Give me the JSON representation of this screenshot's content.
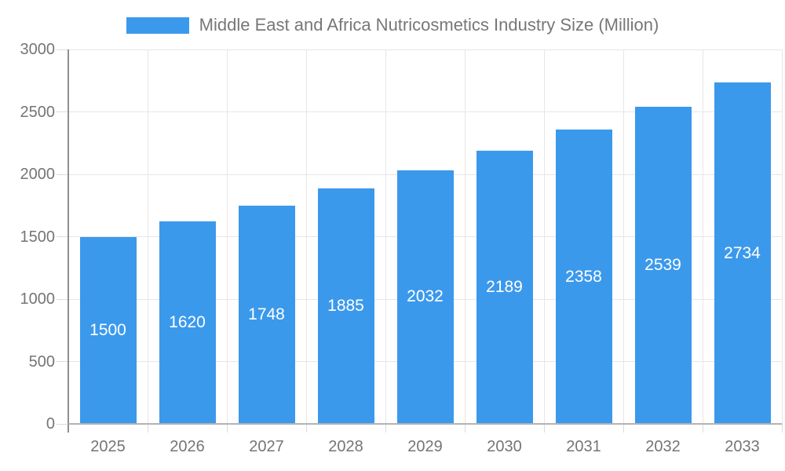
{
  "chart_data": {
    "type": "bar",
    "title": "Middle East and Africa Nutricosmetics Industry Size (Million)",
    "categories": [
      "2025",
      "2026",
      "2027",
      "2028",
      "2029",
      "2030",
      "2031",
      "2032",
      "2033"
    ],
    "values": [
      1500,
      1620,
      1748,
      1885,
      2032,
      2189,
      2358,
      2539,
      2734
    ],
    "series": [
      {
        "name": "Middle East and Africa Nutricosmetics Industry Size (Million)",
        "values": [
          1500,
          1620,
          1748,
          1885,
          2032,
          2189,
          2358,
          2539,
          2734
        ]
      }
    ],
    "xlabel": "",
    "ylabel": "",
    "ylim": [
      0,
      3000
    ],
    "ytick_step": 500,
    "ytick_labels": [
      "0",
      "500",
      "1000",
      "1500",
      "2000",
      "2500",
      "3000"
    ],
    "grid": true,
    "legend_position": "top",
    "bar_value_labels": "inside-center",
    "colors": {
      "bar": "#3B99EC",
      "title_text": "#777777",
      "axis_label_text": "#757575",
      "bar_label_text": "#FFFFFF",
      "gridline": "#E6E6E6",
      "x_axis_line": "#B3B3B3",
      "y_axis_line": "#8F8F8F",
      "background": "#FFFFFF"
    }
  }
}
